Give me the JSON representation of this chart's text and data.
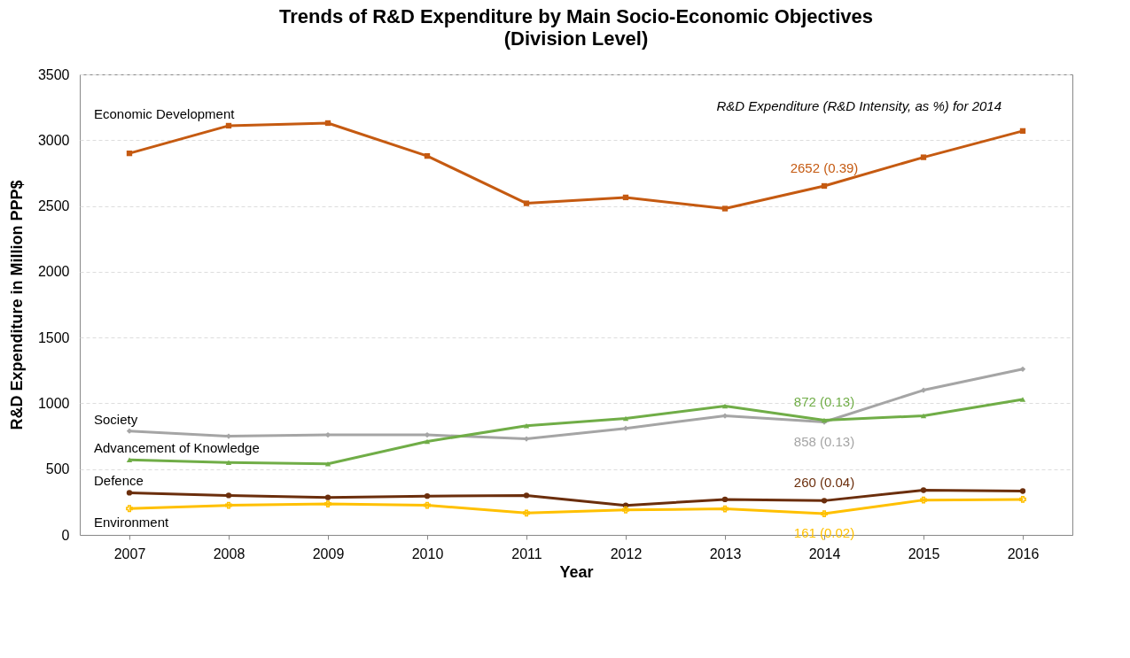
{
  "chart_data": {
    "type": "line",
    "title": "Trends of R&D Expenditure by Main Socio-Economic Objectives",
    "subtitle": "(Division  Level)",
    "xlabel": "Year",
    "ylabel": "R&D Expenditure in Million PPP$",
    "categories": [
      "2007",
      "2008",
      "2009",
      "2010",
      "2011",
      "2012",
      "2013",
      "2014",
      "2015",
      "2016"
    ],
    "series": [
      {
        "name": "Economic Development",
        "color": "#c55a11",
        "marker": "square",
        "values": [
          2900,
          3110,
          3130,
          2880,
          2520,
          2565,
          2480,
          2652,
          2870,
          3070
        ],
        "value_labels": [
          null,
          null,
          null,
          null,
          null,
          null,
          null,
          "2652 (0.39)",
          null,
          null
        ]
      },
      {
        "name": "Society",
        "color": "#a5a5a5",
        "marker": "diamond",
        "values": [
          790,
          750,
          760,
          760,
          730,
          810,
          905,
          858,
          1100,
          1260
        ],
        "value_labels": [
          null,
          null,
          null,
          null,
          null,
          null,
          null,
          "858 (0.13)",
          null,
          null
        ]
      },
      {
        "name": "Advancement of Knowledge",
        "color": "#70ad47",
        "marker": "triangle",
        "values": [
          570,
          550,
          540,
          710,
          830,
          885,
          980,
          872,
          905,
          1030
        ],
        "value_labels": [
          null,
          null,
          null,
          null,
          null,
          null,
          null,
          "872 (0.13)",
          null,
          null
        ]
      },
      {
        "name": "Defence",
        "color": "#6b2e0c",
        "marker": "circle",
        "values": [
          320,
          300,
          285,
          295,
          300,
          224,
          270,
          260,
          340,
          333
        ],
        "value_labels": [
          null,
          null,
          null,
          null,
          null,
          null,
          null,
          "260 (0.04)",
          null,
          null
        ]
      },
      {
        "name": "Environment",
        "color": "#ffc000",
        "marker": "cross",
        "values": [
          200,
          225,
          235,
          225,
          166,
          190,
          198,
          161,
          265,
          270
        ],
        "value_labels": [
          null,
          null,
          null,
          null,
          null,
          null,
          null,
          "161 (0.02)",
          null,
          null
        ]
      }
    ],
    "annotations": [
      "R&D Expenditure (R&D Intensity, as %) for 2014"
    ],
    "ylim": [
      0,
      3500
    ],
    "yticks": [
      0,
      500,
      1000,
      1500,
      2000,
      2500,
      3000,
      3500
    ],
    "grid": "y",
    "legend": false
  }
}
